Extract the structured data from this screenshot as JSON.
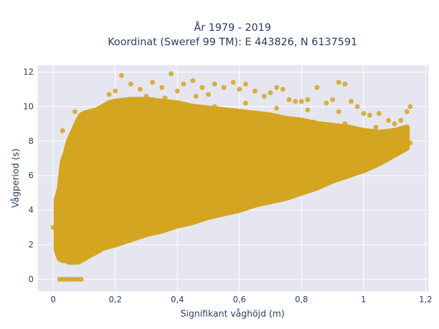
{
  "chart_data": {
    "type": "scatter",
    "title_line1": "År 1979 - 2019",
    "title_line2": "Koordinat (Sweref 99 TM): E 443826, N 6137591",
    "xlabel": "Signifikant våghöjd (m)",
    "ylabel": "Vågperiod (s)",
    "xlim": [
      -0.05,
      1.21
    ],
    "ylim": [
      -0.7,
      12.4
    ],
    "xticks": [
      {
        "value": 0,
        "label": "0"
      },
      {
        "value": 0.2,
        "label": "0,2"
      },
      {
        "value": 0.4,
        "label": "0,4"
      },
      {
        "value": 0.6,
        "label": "0,6"
      },
      {
        "value": 0.8,
        "label": "0,8"
      },
      {
        "value": 1.0,
        "label": "1"
      },
      {
        "value": 1.2,
        "label": "1,2"
      }
    ],
    "yticks": [
      {
        "value": 0,
        "label": "0"
      },
      {
        "value": 2,
        "label": "2"
      },
      {
        "value": 4,
        "label": "4"
      },
      {
        "value": 6,
        "label": "6"
      },
      {
        "value": 8,
        "label": "8"
      },
      {
        "value": 10,
        "label": "10"
      },
      {
        "value": 12,
        "label": "12"
      }
    ],
    "grid": true,
    "colors": {
      "marker": "#d4a521",
      "plot_bg": "#e5e6f0",
      "grid": "#ffffff"
    },
    "points": [
      [
        0.0,
        3.0
      ],
      [
        0.01,
        3.1
      ],
      [
        0.02,
        1.2
      ],
      [
        0.03,
        1.6
      ],
      [
        0.05,
        1.1
      ],
      [
        0.06,
        4.6
      ],
      [
        0.08,
        1.0
      ],
      [
        0.09,
        5.2
      ],
      [
        0.1,
        1.3
      ],
      [
        0.12,
        1.4
      ],
      [
        0.14,
        1.7
      ],
      [
        0.16,
        1.9
      ],
      [
        0.18,
        2.0
      ],
      [
        0.2,
        2.1
      ],
      [
        0.22,
        2.3
      ],
      [
        0.25,
        2.4
      ],
      [
        0.28,
        2.6
      ],
      [
        0.3,
        2.8
      ],
      [
        0.32,
        2.7
      ],
      [
        0.35,
        3.0
      ],
      [
        0.38,
        3.1
      ],
      [
        0.4,
        3.2
      ],
      [
        0.43,
        3.4
      ],
      [
        0.45,
        3.5
      ],
      [
        0.48,
        3.6
      ],
      [
        0.5,
        3.8
      ],
      [
        0.55,
        4.0
      ],
      [
        0.6,
        4.2
      ],
      [
        0.65,
        4.4
      ],
      [
        0.7,
        4.6
      ],
      [
        0.75,
        4.8
      ],
      [
        0.8,
        5.1
      ],
      [
        0.85,
        5.4
      ],
      [
        0.9,
        5.8
      ],
      [
        0.95,
        6.1
      ],
      [
        1.0,
        6.4
      ],
      [
        1.05,
        6.8
      ],
      [
        1.1,
        7.4
      ],
      [
        1.13,
        7.6
      ],
      [
        1.15,
        7.9
      ],
      [
        0.03,
        8.6
      ],
      [
        0.05,
        7.0
      ],
      [
        0.07,
        9.7
      ],
      [
        0.08,
        8.2
      ],
      [
        0.1,
        9.5
      ],
      [
        0.12,
        8.4
      ],
      [
        0.15,
        9.8
      ],
      [
        0.18,
        10.7
      ],
      [
        0.2,
        10.9
      ],
      [
        0.22,
        11.8
      ],
      [
        0.25,
        11.3
      ],
      [
        0.28,
        11.0
      ],
      [
        0.3,
        10.6
      ],
      [
        0.32,
        11.4
      ],
      [
        0.35,
        11.1
      ],
      [
        0.38,
        11.9
      ],
      [
        0.4,
        10.9
      ],
      [
        0.42,
        11.3
      ],
      [
        0.45,
        11.5
      ],
      [
        0.48,
        11.1
      ],
      [
        0.5,
        10.7
      ],
      [
        0.52,
        11.3
      ],
      [
        0.55,
        11.1
      ],
      [
        0.58,
        11.4
      ],
      [
        0.6,
        11.0
      ],
      [
        0.62,
        11.3
      ],
      [
        0.65,
        10.9
      ],
      [
        0.68,
        10.6
      ],
      [
        0.7,
        10.8
      ],
      [
        0.72,
        11.1
      ],
      [
        0.74,
        11.0
      ],
      [
        0.76,
        10.4
      ],
      [
        0.78,
        10.3
      ],
      [
        0.8,
        10.3
      ],
      [
        0.82,
        10.4
      ],
      [
        0.85,
        11.1
      ],
      [
        0.88,
        10.2
      ],
      [
        0.9,
        10.4
      ],
      [
        0.92,
        11.4
      ],
      [
        0.94,
        11.3
      ],
      [
        0.96,
        10.3
      ],
      [
        0.98,
        10.0
      ],
      [
        1.0,
        9.6
      ],
      [
        1.02,
        9.5
      ],
      [
        1.05,
        9.6
      ],
      [
        1.08,
        9.2
      ],
      [
        1.1,
        9.0
      ],
      [
        1.12,
        9.2
      ],
      [
        1.14,
        9.7
      ],
      [
        1.15,
        10.0
      ],
      [
        0.1,
        6.0
      ],
      [
        0.2,
        6.0
      ],
      [
        0.3,
        6.0
      ],
      [
        0.4,
        6.0
      ],
      [
        0.5,
        6.0
      ],
      [
        0.6,
        6.5
      ],
      [
        0.7,
        6.8
      ],
      [
        0.8,
        7.0
      ],
      [
        0.9,
        7.2
      ],
      [
        1.0,
        7.5
      ],
      [
        0.15,
        4.0
      ],
      [
        0.25,
        4.5
      ],
      [
        0.35,
        5.0
      ],
      [
        0.45,
        5.5
      ],
      [
        0.55,
        5.5
      ],
      [
        0.65,
        5.8
      ],
      [
        0.75,
        6.0
      ],
      [
        0.85,
        6.5
      ],
      [
        0.95,
        7.0
      ],
      [
        1.05,
        7.5
      ],
      [
        0.12,
        3.2
      ],
      [
        0.22,
        3.5
      ],
      [
        0.32,
        4.0
      ],
      [
        0.42,
        4.3
      ],
      [
        0.52,
        4.6
      ],
      [
        0.62,
        5.0
      ],
      [
        0.72,
        5.3
      ],
      [
        0.82,
        5.8
      ],
      [
        0.92,
        6.3
      ],
      [
        1.02,
        7.0
      ],
      [
        0.18,
        8.0
      ],
      [
        0.28,
        8.0
      ],
      [
        0.38,
        8.0
      ],
      [
        0.48,
        8.2
      ],
      [
        0.58,
        8.4
      ],
      [
        0.68,
        8.5
      ],
      [
        0.78,
        8.6
      ],
      [
        0.88,
        8.4
      ],
      [
        0.98,
        8.4
      ],
      [
        1.08,
        8.1
      ],
      [
        0.14,
        9.0
      ],
      [
        0.24,
        9.2
      ],
      [
        0.34,
        9.3
      ],
      [
        0.44,
        9.4
      ],
      [
        0.54,
        9.3
      ],
      [
        0.64,
        9.4
      ],
      [
        0.74,
        9.2
      ],
      [
        0.84,
        9.1
      ],
      [
        0.94,
        9.0
      ],
      [
        1.04,
        8.8
      ],
      [
        0.08,
        7.0
      ],
      [
        0.09,
        6.0
      ],
      [
        0.11,
        5.0
      ],
      [
        0.13,
        4.0
      ],
      [
        0.07,
        3.2
      ],
      [
        0.06,
        2.2
      ],
      [
        0.05,
        1.5
      ],
      [
        0.04,
        2.5
      ],
      [
        0.09,
        2.8
      ],
      [
        0.11,
        2.2
      ],
      [
        0.2,
        3.0
      ],
      [
        0.24,
        2.7
      ],
      [
        0.26,
        3.2
      ],
      [
        0.34,
        3.6
      ],
      [
        0.36,
        3.3
      ],
      [
        0.46,
        4.0
      ],
      [
        0.56,
        4.2
      ],
      [
        0.66,
        4.6
      ],
      [
        0.76,
        5.0
      ],
      [
        0.86,
        5.6
      ],
      [
        0.16,
        5.2
      ],
      [
        0.26,
        5.6
      ],
      [
        0.36,
        6.2
      ],
      [
        0.46,
        6.8
      ],
      [
        0.56,
        7.0
      ],
      [
        0.66,
        7.2
      ],
      [
        0.76,
        7.5
      ],
      [
        0.86,
        7.6
      ],
      [
        0.96,
        7.8
      ],
      [
        1.06,
        7.9
      ],
      [
        0.18,
        6.8
      ],
      [
        0.28,
        7.0
      ],
      [
        0.38,
        7.2
      ],
      [
        0.48,
        7.4
      ],
      [
        0.58,
        7.6
      ],
      [
        0.68,
        7.8
      ],
      [
        0.78,
        8.0
      ],
      [
        0.88,
        8.1
      ],
      [
        0.98,
        8.0
      ],
      [
        1.1,
        8.4
      ],
      [
        0.05,
        0.0
      ],
      [
        0.02,
        0.0
      ],
      [
        0.03,
        0.0
      ],
      [
        0.04,
        0.0
      ],
      [
        0.06,
        0.0
      ],
      [
        0.07,
        0.0
      ],
      [
        0.08,
        0.0
      ],
      [
        0.09,
        0.0
      ],
      [
        0.22,
        10.2
      ],
      [
        0.32,
        10.4
      ],
      [
        0.42,
        10.1
      ],
      [
        0.52,
        10.0
      ],
      [
        0.62,
        10.2
      ],
      [
        0.72,
        9.9
      ],
      [
        0.82,
        9.8
      ],
      [
        0.92,
        9.7
      ],
      [
        0.36,
        10.5
      ],
      [
        0.46,
        10.6
      ]
    ],
    "bands": [
      {
        "x": 0.01,
        "lo": 1.7,
        "hi": 4.6
      },
      {
        "x": 0.02,
        "lo": 1.2,
        "hi": 5.2
      },
      {
        "x": 0.03,
        "lo": 1.1,
        "hi": 6.8
      },
      {
        "x": 0.04,
        "lo": 1.1,
        "hi": 7.3
      },
      {
        "x": 0.05,
        "lo": 1.0,
        "hi": 8.0
      },
      {
        "x": 0.06,
        "lo": 1.0,
        "hi": 8.4
      },
      {
        "x": 0.07,
        "lo": 1.0,
        "hi": 8.8
      },
      {
        "x": 0.08,
        "lo": 1.0,
        "hi": 9.2
      },
      {
        "x": 0.09,
        "lo": 1.1,
        "hi": 9.5
      },
      {
        "x": 0.1,
        "lo": 1.2,
        "hi": 9.6
      },
      {
        "x": 0.12,
        "lo": 1.4,
        "hi": 9.7
      },
      {
        "x": 0.14,
        "lo": 1.6,
        "hi": 9.8
      },
      {
        "x": 0.16,
        "lo": 1.8,
        "hi": 10.0
      },
      {
        "x": 0.18,
        "lo": 1.9,
        "hi": 10.2
      },
      {
        "x": 0.2,
        "lo": 2.0,
        "hi": 10.3
      },
      {
        "x": 0.25,
        "lo": 2.3,
        "hi": 10.4
      },
      {
        "x": 0.3,
        "lo": 2.6,
        "hi": 10.4
      },
      {
        "x": 0.35,
        "lo": 2.8,
        "hi": 10.3
      },
      {
        "x": 0.4,
        "lo": 3.1,
        "hi": 10.2
      },
      {
        "x": 0.45,
        "lo": 3.3,
        "hi": 10.0
      },
      {
        "x": 0.5,
        "lo": 3.6,
        "hi": 9.9
      },
      {
        "x": 0.55,
        "lo": 3.8,
        "hi": 9.8
      },
      {
        "x": 0.6,
        "lo": 4.0,
        "hi": 9.7
      },
      {
        "x": 0.65,
        "lo": 4.3,
        "hi": 9.6
      },
      {
        "x": 0.7,
        "lo": 4.5,
        "hi": 9.5
      },
      {
        "x": 0.75,
        "lo": 4.7,
        "hi": 9.3
      },
      {
        "x": 0.8,
        "lo": 5.0,
        "hi": 9.2
      },
      {
        "x": 0.85,
        "lo": 5.3,
        "hi": 9.0
      },
      {
        "x": 0.9,
        "lo": 5.7,
        "hi": 8.9
      },
      {
        "x": 0.95,
        "lo": 6.0,
        "hi": 8.8
      },
      {
        "x": 1.0,
        "lo": 6.3,
        "hi": 8.6
      },
      {
        "x": 1.05,
        "lo": 6.7,
        "hi": 8.5
      },
      {
        "x": 1.1,
        "lo": 7.2,
        "hi": 8.6
      },
      {
        "x": 1.14,
        "lo": 7.6,
        "hi": 8.8
      }
    ]
  }
}
